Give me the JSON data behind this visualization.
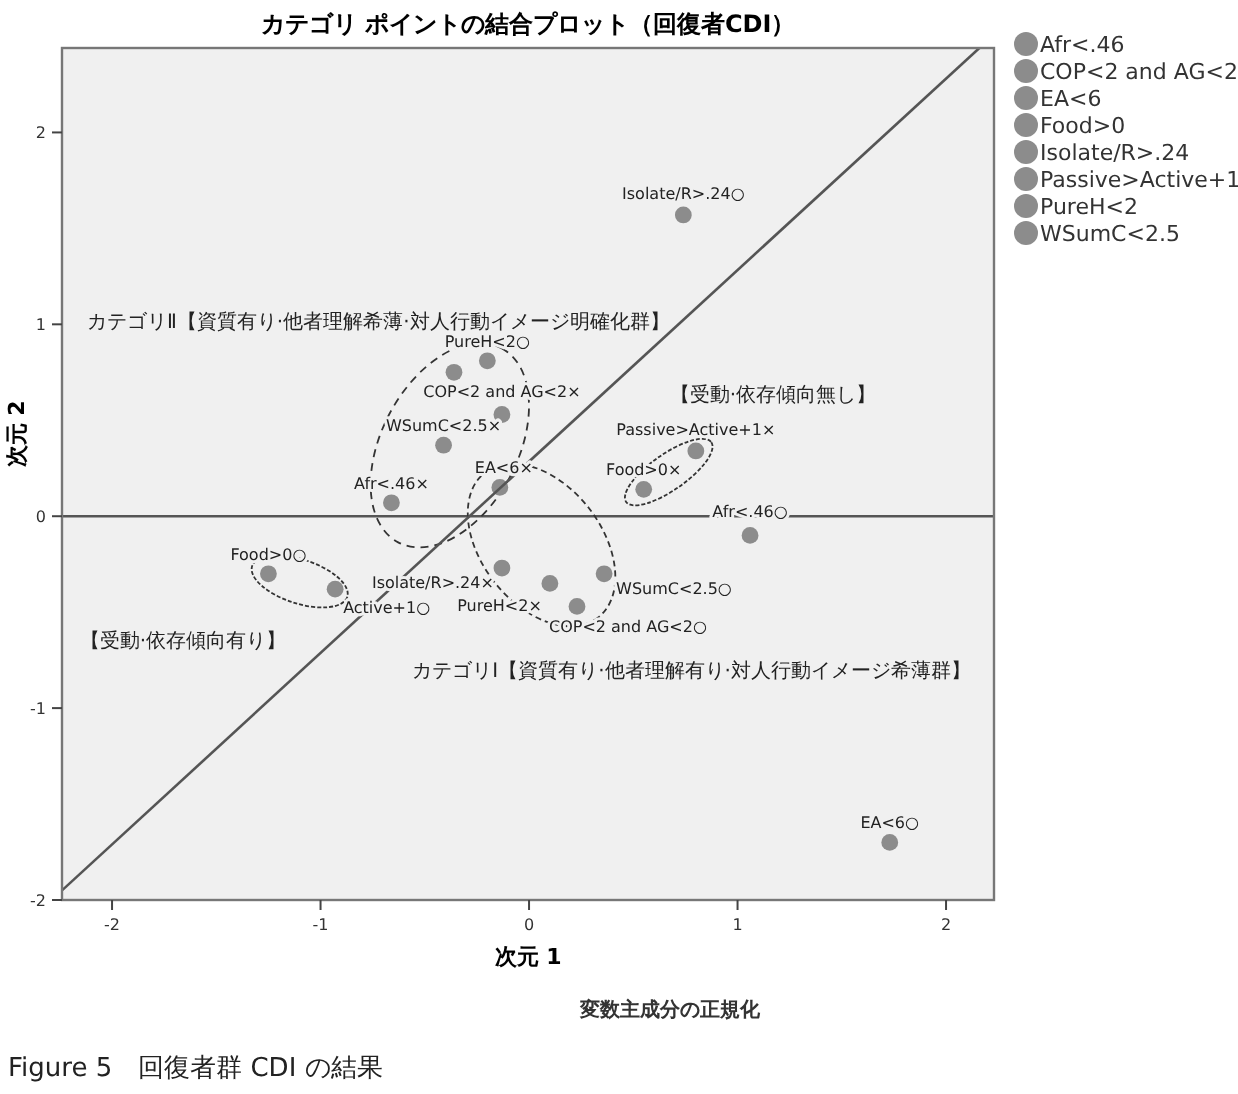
{
  "chart_data": {
    "type": "scatter",
    "title": "カテゴリ ポイントの結合プロット（回復者CDI）",
    "xlabel": "次元 1",
    "ylabel": "次元 2",
    "xlim": [
      -2.24,
      2.23
    ],
    "ylim": [
      -2.0,
      2.44
    ],
    "xticks": [
      -2,
      -1,
      0,
      1,
      2
    ],
    "yticks": [
      -2,
      -1,
      0,
      1,
      2
    ],
    "marker": "circle",
    "legend": "right",
    "series": [
      {
        "name": "Afr<.46",
        "color": "#8c8c8c",
        "x": [
          1.06,
          -0.66
        ],
        "values": [
          -0.1,
          0.07
        ]
      },
      {
        "name": "COP<2 and AG<2",
        "color": "#8c8c8c",
        "x": [
          -0.13,
          0.23
        ],
        "values": [
          0.53,
          -0.47
        ]
      },
      {
        "name": "EA<6",
        "color": "#8c8c8c",
        "x": [
          -0.14,
          1.73
        ],
        "values": [
          0.15,
          -1.7
        ]
      },
      {
        "name": "Food>0",
        "color": "#8c8c8c",
        "x": [
          0.55,
          -1.25
        ],
        "values": [
          0.14,
          -0.3
        ]
      },
      {
        "name": "Isolate/R>.24",
        "color": "#8c8c8c",
        "x": [
          0.74,
          -0.13
        ],
        "values": [
          1.57,
          -0.27
        ]
      },
      {
        "name": "Passive>Active+1",
        "color": "#8c8c8c",
        "x": [
          0.8,
          -0.93
        ],
        "values": [
          0.34,
          -0.38
        ]
      },
      {
        "name": "PureH<2",
        "color": "#8c8c8c",
        "x": [
          -0.36,
          -0.2,
          0.1
        ],
        "values": [
          0.75,
          0.81,
          -0.35
        ]
      },
      {
        "name": "WSumC<2.5",
        "color": "#8c8c8c",
        "x": [
          -0.41,
          0.36
        ],
        "values": [
          0.37,
          -0.3
        ]
      },
      {
        "type": "line",
        "marker": "none",
        "color": "#555555",
        "x": [
          -2.24,
          2.16
        ],
        "values": [
          -1.95,
          2.44
        ]
      }
    ],
    "ref_lines": [
      {
        "axis": "y",
        "value": 0,
        "color": "#555555"
      }
    ],
    "annotations": [
      {
        "text": "Isolate/R>.24○",
        "x": 0.74,
        "y": 1.57
      },
      {
        "text": "PureH<2○",
        "x": -0.2,
        "y": 0.81
      },
      {
        "text": "COP<2 and AG<2×",
        "x": -0.13,
        "y": 0.53
      },
      {
        "text": "WSumC<2.5×",
        "x": -0.41,
        "y": 0.37
      },
      {
        "text": "EA<6×",
        "x": -0.14,
        "y": 0.15
      },
      {
        "text": "Afr<.46×",
        "x": -0.66,
        "y": 0.07
      },
      {
        "text": "Passive>Active+1×",
        "x": 0.8,
        "y": 0.34
      },
      {
        "text": "Food>0×",
        "x": 0.55,
        "y": 0.14
      },
      {
        "text": "Food>0○",
        "x": -1.25,
        "y": -0.3
      },
      {
        "text": "Active+1○",
        "x": -0.93,
        "y": -0.38
      },
      {
        "text": "Isolate/R>.24×",
        "x": -0.13,
        "y": -0.27
      },
      {
        "text": "PureH<2×",
        "x": 0.1,
        "y": -0.35
      },
      {
        "text": "WSumC<2.5○",
        "x": 0.36,
        "y": -0.3
      },
      {
        "text": "COP<2 and AG<2○",
        "x": 0.23,
        "y": -0.47
      },
      {
        "text": "Afr<.46○",
        "x": 1.06,
        "y": -0.1
      },
      {
        "text": "EA<6○",
        "x": 1.73,
        "y": -1.7
      },
      "カテゴリⅡ【資質有り·他者理解希薄·対人行動イメージ明確化群】",
      "【受動·依存傾向無し】",
      "【受動·依存傾向有り】",
      "カテゴリⅠ【資質有り·他者理解有り·対人行動イメージ希薄群】",
      "変数主成分の正規化",
      "Figure 5　回復者群 CDI の結果"
    ]
  }
}
